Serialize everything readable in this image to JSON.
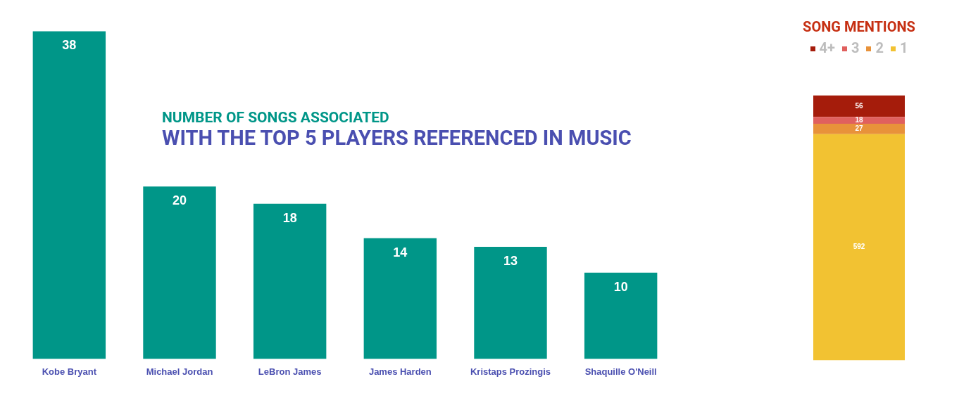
{
  "chart_data": [
    {
      "type": "bar",
      "title": "NUMBER OF SONGS ASSOCIATED",
      "subtitle": "WITH THE TOP 5 PLAYERS REFERENCED IN MUSIC",
      "categories": [
        "Kobe Bryant",
        "Michael Jordan",
        "LeBron James",
        "James Harden",
        "Kristaps Prozingis",
        "Shaquille O'Neill"
      ],
      "values": [
        38,
        20,
        18,
        14,
        13,
        10
      ],
      "color": "#009688",
      "data_labels": true,
      "grid": false,
      "legend": false
    },
    {
      "type": "bar",
      "title": "SONG MENTIONS",
      "categories": [
        null
      ],
      "stacked": true,
      "legend": "top",
      "data_labels": true,
      "series": [
        {
          "name": "1",
          "color": "#f2c232",
          "values": [
            592
          ]
        },
        {
          "name": "2",
          "color": "#e8923a",
          "values": [
            27
          ]
        },
        {
          "name": "3",
          "color": "#e0605e",
          "values": [
            18
          ]
        },
        {
          "name": "4+",
          "color": "#a51c0b",
          "values": [
            56
          ]
        }
      ]
    }
  ]
}
